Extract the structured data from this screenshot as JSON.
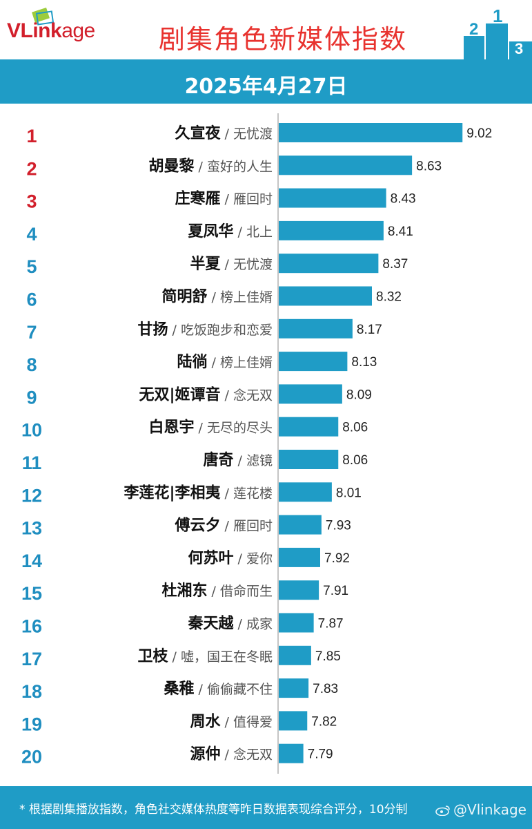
{
  "header": {
    "logo_v": "V",
    "logo_rest_bold": "Link",
    "logo_rest": "age",
    "title": "剧集角色新媒体指数",
    "podium_numbers": [
      "2",
      "1",
      "3"
    ]
  },
  "date": "2025年4月27日",
  "footer": {
    "note": "* 根据剧集播放指数，角色社交媒体热度等昨日数据表现综合评分，10分制",
    "watermark": "@Vlinkage"
  },
  "colors": {
    "bar": "#1f9cc6",
    "rank_top3": "#d21f2b",
    "rank_other": "#1f8ec0",
    "band": "#1f9cc6"
  },
  "chart_data": {
    "type": "bar",
    "orientation": "horizontal",
    "categories": [
      {
        "rank": "1",
        "name": "久宣夜",
        "drama": "/ 无忧渡"
      },
      {
        "rank": "2",
        "name": "胡曼黎",
        "drama": "/ 蛮好的人生"
      },
      {
        "rank": "3",
        "name": "庄寒雁",
        "drama": "/ 雁回时"
      },
      {
        "rank": "4",
        "name": "夏凤华",
        "drama": "/ 北上"
      },
      {
        "rank": "5",
        "name": "半夏",
        "drama": "/ 无忧渡"
      },
      {
        "rank": "6",
        "name": "简明舒",
        "drama": "/ 榜上佳婿"
      },
      {
        "rank": "7",
        "name": "甘扬",
        "drama": "/ 吃饭跑步和恋爱"
      },
      {
        "rank": "8",
        "name": "陆徜",
        "drama": "/ 榜上佳婿"
      },
      {
        "rank": "9",
        "name": "无双|姬谭音",
        "drama": "/ 念无双"
      },
      {
        "rank": "10",
        "name": "白恩宇",
        "drama": "/ 无尽的尽头"
      },
      {
        "rank": "11",
        "name": "唐奇",
        "drama": "/ 滤镜"
      },
      {
        "rank": "12",
        "name": "李莲花|李相夷",
        "drama": "/ 莲花楼"
      },
      {
        "rank": "13",
        "name": "傅云夕",
        "drama": "/ 雁回时"
      },
      {
        "rank": "14",
        "name": "何苏叶",
        "drama": "/ 爱你"
      },
      {
        "rank": "15",
        "name": "杜湘东",
        "drama": "/ 借命而生"
      },
      {
        "rank": "16",
        "name": "秦天越",
        "drama": "/ 成家"
      },
      {
        "rank": "17",
        "name": "卫枝",
        "drama": "/ 嘘，国王在冬眠"
      },
      {
        "rank": "18",
        "name": "桑稚",
        "drama": "/ 偷偷藏不住"
      },
      {
        "rank": "19",
        "name": "周水",
        "drama": "/ 值得爱"
      },
      {
        "rank": "20",
        "name": "源仲",
        "drama": "/ 念无双"
      }
    ],
    "values": [
      9.02,
      8.63,
      8.43,
      8.41,
      8.37,
      8.32,
      8.17,
      8.13,
      8.09,
      8.06,
      8.06,
      8.01,
      7.93,
      7.92,
      7.91,
      7.87,
      7.85,
      7.83,
      7.82,
      7.79
    ],
    "value_labels": [
      "9.02",
      "8.63",
      "8.43",
      "8.41",
      "8.37",
      "8.32",
      "8.17",
      "8.13",
      "8.09",
      "8.06",
      "8.06",
      "8.01",
      "7.93",
      "7.92",
      "7.91",
      "7.87",
      "7.85",
      "7.83",
      "7.82",
      "7.79"
    ],
    "xlim": [
      7.6,
      9.2
    ],
    "grid": false,
    "legend": "none"
  }
}
